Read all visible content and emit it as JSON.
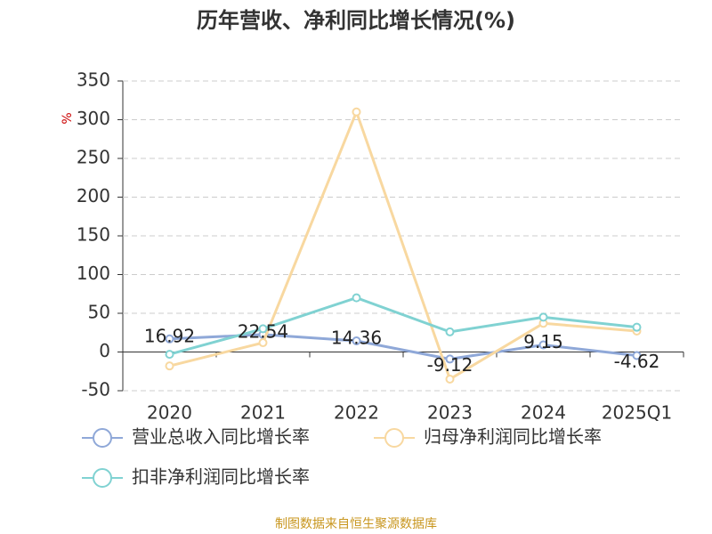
{
  "chart_data": {
    "type": "line",
    "title": "历年营收、净利同比增长情况(%)",
    "y_label": "%",
    "categories": [
      "2020",
      "2021",
      "2022",
      "2023",
      "2024",
      "2025Q1"
    ],
    "series": [
      {
        "name": "营业总收入同比增长率",
        "color": "#8fa8d8",
        "values": [
          16.92,
          22.54,
          14.36,
          -9.12,
          9.15,
          -4.62
        ],
        "show_labels": true
      },
      {
        "name": "归母净利润同比增长率",
        "color": "#f8d8a0",
        "values": [
          -18,
          12,
          310,
          -35,
          37,
          27
        ],
        "show_labels": false
      },
      {
        "name": "扣非净利润同比增长率",
        "color": "#80d2d2",
        "values": [
          -3,
          30,
          70,
          26,
          45,
          32
        ],
        "show_labels": false
      }
    ],
    "ylim": [
      -50,
      350
    ],
    "yticks": [
      -50,
      0,
      50,
      100,
      150,
      200,
      250,
      300,
      350
    ],
    "grid": true,
    "source": "制图数据来自恒生聚源数据库"
  }
}
